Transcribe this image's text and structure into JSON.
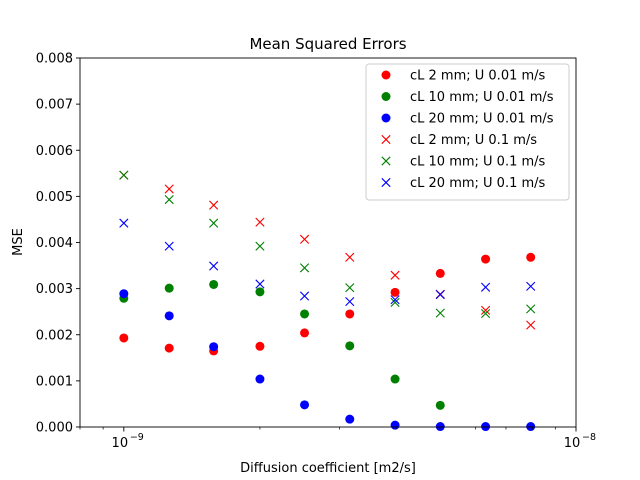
{
  "chart_data": {
    "type": "scatter",
    "title": "Mean Squared Errors",
    "xlabel": "Diffusion coefficient [m2/s]",
    "ylabel": "MSE",
    "xscale": "log",
    "xlim": [
      8e-10,
      1e-08
    ],
    "ylim": [
      0,
      0.008
    ],
    "xticks_major": [
      {
        "value": 1e-09,
        "base": "10",
        "exp": "−9"
      },
      {
        "value": 1e-08,
        "base": "10",
        "exp": "−8"
      }
    ],
    "yticks": [
      {
        "value": 0.0,
        "label": "0.000"
      },
      {
        "value": 0.001,
        "label": "0.001"
      },
      {
        "value": 0.002,
        "label": "0.002"
      },
      {
        "value": 0.003,
        "label": "0.003"
      },
      {
        "value": 0.004,
        "label": "0.004"
      },
      {
        "value": 0.005,
        "label": "0.005"
      },
      {
        "value": 0.006,
        "label": "0.006"
      },
      {
        "value": 0.007,
        "label": "0.007"
      },
      {
        "value": 0.008,
        "label": "0.008"
      }
    ],
    "grid": false,
    "legend_position": "top-right",
    "x": [
      1e-09,
      1.26e-09,
      1.58e-09,
      2e-09,
      2.51e-09,
      3.16e-09,
      3.98e-09,
      5.01e-09,
      6.31e-09,
      7.94e-09
    ],
    "series": [
      {
        "name": "cL 2 mm; U 0.01 m/s",
        "marker": "circle",
        "color": "#ff0000",
        "values": [
          0.00193,
          0.00171,
          0.00165,
          0.00175,
          0.00204,
          0.00245,
          0.00292,
          0.00333,
          0.00364,
          0.00368
        ]
      },
      {
        "name": "cL 10 mm; U 0.01 m/s",
        "marker": "circle",
        "color": "#008000",
        "values": [
          0.00279,
          0.00301,
          0.00309,
          0.00293,
          0.00245,
          0.00176,
          0.00104,
          0.00047,
          null,
          null
        ]
      },
      {
        "name": "cL 20 mm; U 0.01 m/s",
        "marker": "circle",
        "color": "#0000ff",
        "values": [
          0.00289,
          0.00241,
          0.00174,
          0.00104,
          0.00048,
          0.00017,
          4e-05,
          1e-05,
          1e-05,
          1e-05
        ]
      },
      {
        "name": "cL 2 mm; U 0.1 m/s",
        "marker": "x",
        "color": "#ff0000",
        "values": [
          0.00546,
          0.00516,
          0.00481,
          0.00444,
          0.00407,
          0.00368,
          0.00329,
          0.00288,
          0.00253,
          0.00221
        ]
      },
      {
        "name": "cL 10 mm; U 0.1 m/s",
        "marker": "x",
        "color": "#008000",
        "values": [
          0.00546,
          0.00493,
          0.00442,
          0.00392,
          0.00345,
          0.00302,
          0.0027,
          0.00247,
          0.00246,
          0.00256
        ]
      },
      {
        "name": "cL 20 mm; U 0.1 m/s",
        "marker": "x",
        "color": "#0000ff",
        "values": [
          0.00442,
          0.00392,
          0.00349,
          0.0031,
          0.00284,
          0.00272,
          0.00276,
          0.00287,
          0.00303,
          0.00305
        ]
      }
    ]
  }
}
